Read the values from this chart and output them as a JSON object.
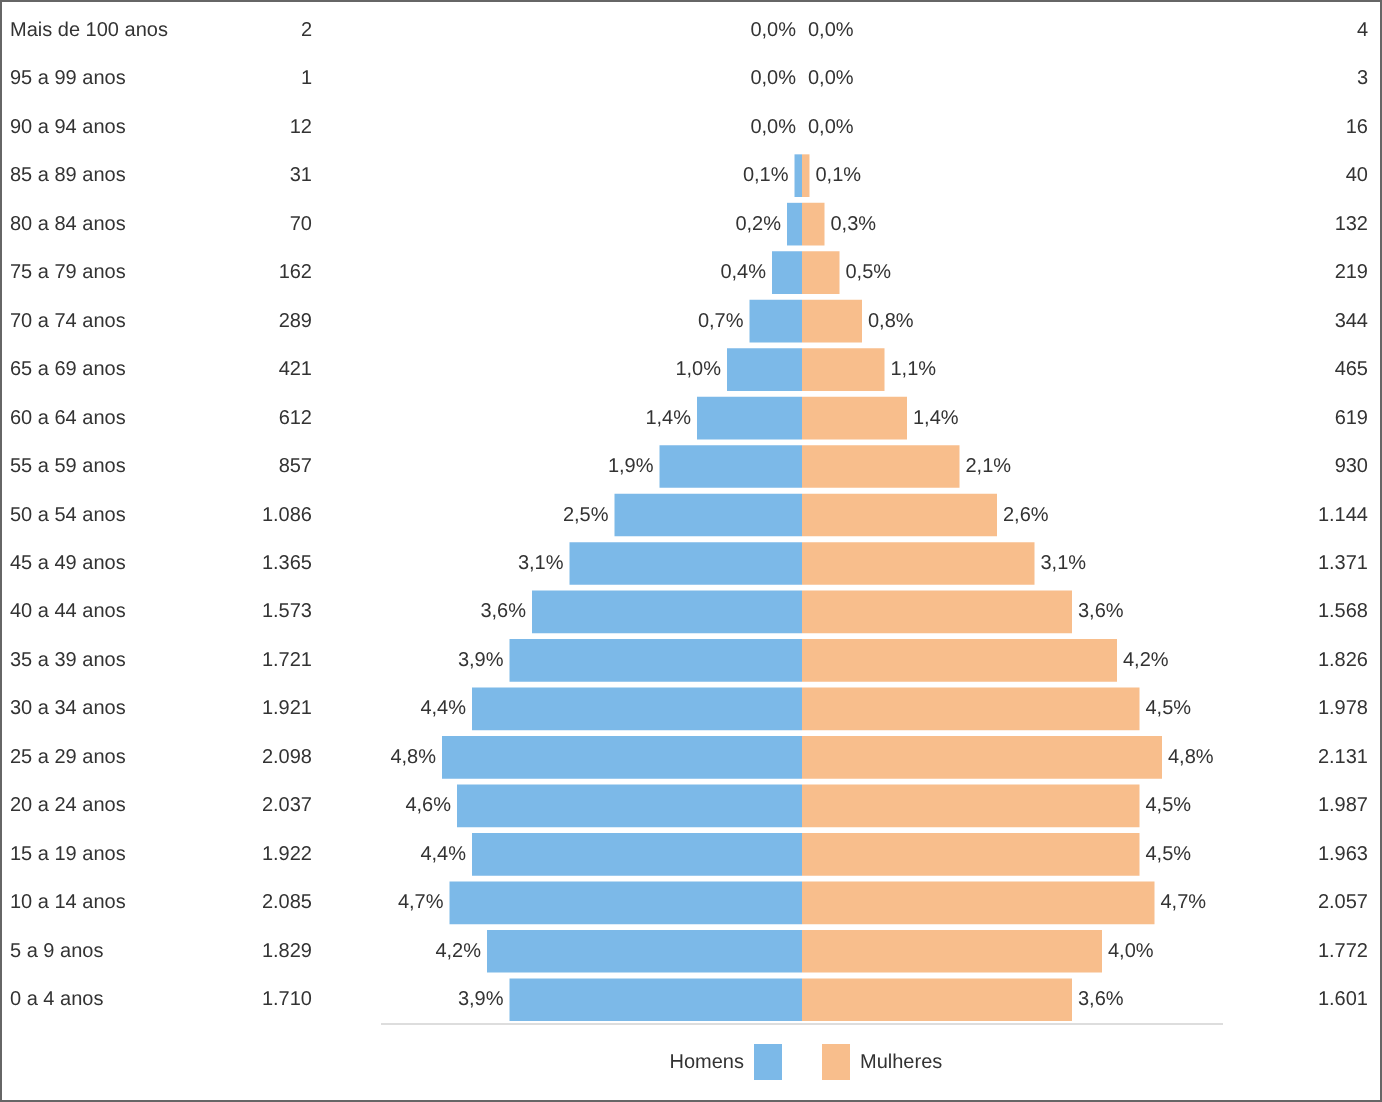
{
  "chart_data": [
    {
      "type": "bar",
      "orientation": "horizontal",
      "categories": [
        "Mais de 100 anos",
        "95 a 99 anos",
        "90 a 94 anos",
        "85 a 89 anos",
        "80 a 84 anos",
        "75 a 79 anos",
        "70 a 74 anos",
        "65 a 69 anos",
        "60 a 64 anos",
        "55 a 59 anos",
        "50 a 54 anos",
        "45 a 49 anos",
        "40 a 44 anos",
        "35 a 39 anos",
        "30 a 34 anos",
        "25 a 29 anos",
        "20 a 24 anos",
        "15 a 19 anos",
        "10 a 14 anos",
        "5 a 9 anos",
        "0 a 4 anos"
      ],
      "series": [
        {
          "name": "Homens",
          "color": "#7cb9e8",
          "values": [
            0.0,
            0.0,
            0.0,
            0.1,
            0.2,
            0.4,
            0.7,
            1.0,
            1.4,
            1.9,
            2.5,
            3.1,
            3.6,
            3.9,
            4.4,
            4.8,
            4.6,
            4.4,
            4.7,
            4.2,
            3.9
          ],
          "value_labels": [
            "0,0%",
            "0,0%",
            "0,0%",
            "0,1%",
            "0,2%",
            "0,4%",
            "0,7%",
            "1,0%",
            "1,4%",
            "1,9%",
            "2,5%",
            "3,1%",
            "3,6%",
            "3,9%",
            "4,4%",
            "4,8%",
            "4,6%",
            "4,4%",
            "4,7%",
            "4,2%",
            "3,9%"
          ]
        }
      ],
      "xlim": [
        5.6,
        0
      ],
      "data_labels": true,
      "legend": "bottom right",
      "grid": false,
      "tick_labels": "y",
      "annotations": [
        "2",
        "1",
        "12",
        "31",
        "70",
        "162",
        "289",
        "421",
        "612",
        "857",
        "1.086",
        "1.365",
        "1.573",
        "1.721",
        "1.921",
        "2.098",
        "2.037",
        "1.922",
        "2.085",
        "1.829",
        "1.710"
      ]
    },
    {
      "type": "bar",
      "orientation": "horizontal",
      "categories": [
        null,
        null,
        null,
        null,
        null,
        null,
        null,
        null,
        null,
        null,
        null,
        null,
        null,
        null,
        null,
        null,
        null,
        null,
        null,
        null,
        null
      ],
      "series": [
        {
          "name": "Mulheres",
          "color": "#f8be8c",
          "values": [
            0.0,
            0.0,
            0.0,
            0.1,
            0.3,
            0.5,
            0.8,
            1.1,
            1.4,
            2.1,
            2.6,
            3.1,
            3.6,
            4.2,
            4.5,
            4.8,
            4.5,
            4.5,
            4.7,
            4.0,
            3.6
          ],
          "value_labels": [
            "0,0%",
            "0,0%",
            "0,0%",
            "0,1%",
            "0,3%",
            "0,5%",
            "0,8%",
            "1,1%",
            "1,4%",
            "2,1%",
            "2,6%",
            "3,1%",
            "3,6%",
            "4,2%",
            "4,5%",
            "4,8%",
            "4,5%",
            "4,5%",
            "4,7%",
            "4,0%",
            "3,6%"
          ]
        }
      ],
      "xlim": [
        0,
        5.6
      ],
      "data_labels": true,
      "legend": "bottom left",
      "grid": false,
      "tick_labels": false,
      "annotations": [
        "4",
        "3",
        "16",
        "40",
        "132",
        "219",
        "344",
        "465",
        "619",
        "930",
        "1.144",
        "1.371",
        "1.568",
        "1.826",
        "1.978",
        "2.131",
        "1.987",
        "1.963",
        "2.057",
        "1.772",
        "1.601"
      ]
    }
  ]
}
